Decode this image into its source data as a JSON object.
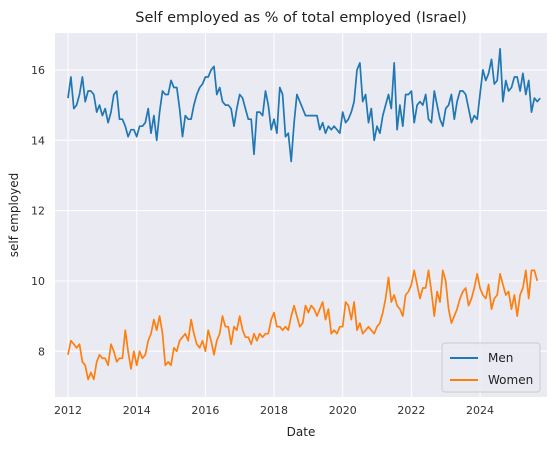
{
  "chart_data": {
    "type": "line",
    "title": "Self employed as % of total employed (Israel)",
    "xlabel": "Date",
    "ylabel": "self employed",
    "xlim": [
      2011.62,
      2025.95
    ],
    "ylim": [
      6.7,
      17.05
    ],
    "x_ticks": [
      2012,
      2014,
      2016,
      2018,
      2020,
      2022,
      2024
    ],
    "y_ticks": [
      8,
      10,
      12,
      14,
      16
    ],
    "grid": true,
    "legend_position": "lower-right",
    "background": "#eaeaf2",
    "x_start": 2012.0,
    "x_step": 0.08333,
    "series": [
      {
        "name": "Men",
        "color": "#1f77b4",
        "values": [
          15.2,
          15.8,
          14.9,
          15.0,
          15.3,
          15.8,
          15.1,
          15.4,
          15.4,
          15.3,
          14.8,
          15.0,
          14.7,
          14.9,
          14.5,
          14.8,
          15.3,
          15.4,
          14.6,
          14.6,
          14.4,
          14.1,
          14.3,
          14.3,
          14.1,
          14.4,
          14.4,
          14.5,
          14.9,
          14.2,
          14.7,
          14.0,
          14.8,
          15.4,
          15.3,
          15.3,
          15.7,
          15.5,
          15.5,
          14.9,
          14.1,
          14.7,
          14.6,
          14.6,
          15.0,
          15.3,
          15.5,
          15.6,
          15.8,
          15.8,
          16.0,
          16.1,
          15.3,
          15.5,
          15.1,
          15.0,
          15.0,
          14.9,
          14.4,
          14.9,
          15.3,
          15.2,
          14.9,
          14.6,
          14.6,
          13.6,
          14.8,
          14.8,
          14.7,
          15.4,
          15.0,
          14.3,
          14.6,
          14.2,
          15.5,
          15.3,
          14.1,
          14.2,
          13.4,
          14.5,
          15.3,
          15.1,
          14.9,
          14.7,
          14.7,
          14.7,
          14.7,
          14.7,
          14.3,
          14.5,
          14.2,
          14.4,
          14.3,
          14.4,
          14.3,
          14.2,
          14.8,
          14.5,
          14.6,
          14.8,
          15.1,
          16.0,
          16.2,
          15.1,
          15.3,
          14.5,
          14.9,
          14.0,
          14.4,
          14.2,
          14.7,
          15.0,
          15.3,
          14.9,
          16.2,
          14.3,
          15.0,
          14.4,
          15.3,
          15.3,
          15.4,
          14.5,
          15.0,
          15.1,
          15.0,
          15.3,
          14.6,
          14.5,
          15.4,
          15.0,
          14.6,
          14.4,
          14.9,
          15.0,
          15.3,
          14.6,
          15.1,
          15.4,
          15.4,
          15.3,
          14.9,
          14.5,
          14.7,
          14.6,
          15.3,
          16.0,
          15.7,
          15.9,
          16.3,
          15.6,
          15.7,
          16.6,
          15.1,
          15.7,
          15.4,
          15.5,
          15.8,
          15.8,
          15.4,
          15.9,
          15.3,
          15.7,
          14.8,
          15.2,
          15.1,
          15.2
        ]
      },
      {
        "name": "Women",
        "color": "#ff7f0e",
        "values": [
          7.9,
          8.3,
          8.2,
          8.1,
          8.2,
          7.7,
          7.6,
          7.2,
          7.4,
          7.2,
          7.7,
          7.9,
          7.8,
          7.8,
          7.6,
          8.2,
          8.0,
          7.7,
          7.8,
          7.8,
          8.6,
          8.0,
          7.5,
          8.0,
          7.6,
          8.0,
          7.8,
          7.9,
          8.3,
          8.5,
          8.9,
          8.6,
          9.0,
          8.5,
          7.6,
          7.7,
          7.6,
          8.1,
          8.0,
          8.3,
          8.4,
          8.5,
          8.3,
          8.9,
          8.5,
          8.2,
          8.1,
          8.3,
          8.0,
          8.6,
          8.3,
          7.9,
          8.3,
          8.5,
          9.0,
          8.7,
          8.7,
          8.2,
          8.7,
          8.6,
          9.0,
          8.6,
          8.4,
          8.4,
          8.2,
          8.5,
          8.3,
          8.5,
          8.4,
          8.5,
          8.5,
          8.9,
          9.1,
          8.7,
          8.7,
          8.6,
          8.7,
          8.6,
          9.0,
          9.3,
          9.0,
          8.7,
          8.8,
          9.3,
          9.1,
          9.3,
          9.2,
          9.0,
          9.2,
          9.4,
          8.9,
          9.2,
          8.5,
          8.6,
          8.5,
          8.7,
          8.7,
          9.4,
          9.3,
          8.9,
          9.4,
          8.6,
          8.8,
          8.5,
          8.6,
          8.7,
          8.6,
          8.5,
          8.7,
          8.8,
          9.1,
          9.5,
          10.1,
          9.4,
          9.6,
          9.3,
          9.2,
          9.0,
          9.6,
          9.7,
          9.9,
          10.3,
          9.9,
          9.5,
          9.8,
          9.8,
          10.3,
          9.7,
          9.0,
          9.7,
          9.4,
          10.3,
          10.0,
          9.2,
          8.8,
          9.0,
          9.2,
          9.5,
          9.7,
          9.8,
          9.3,
          9.5,
          9.8,
          10.2,
          9.8,
          9.6,
          9.5,
          9.9,
          9.2,
          9.5,
          9.6,
          10.2,
          9.9,
          9.6,
          9.7,
          9.2,
          9.6,
          9.0,
          9.6,
          9.8,
          10.3,
          9.5,
          10.3,
          10.3,
          10.0
        ]
      }
    ]
  }
}
